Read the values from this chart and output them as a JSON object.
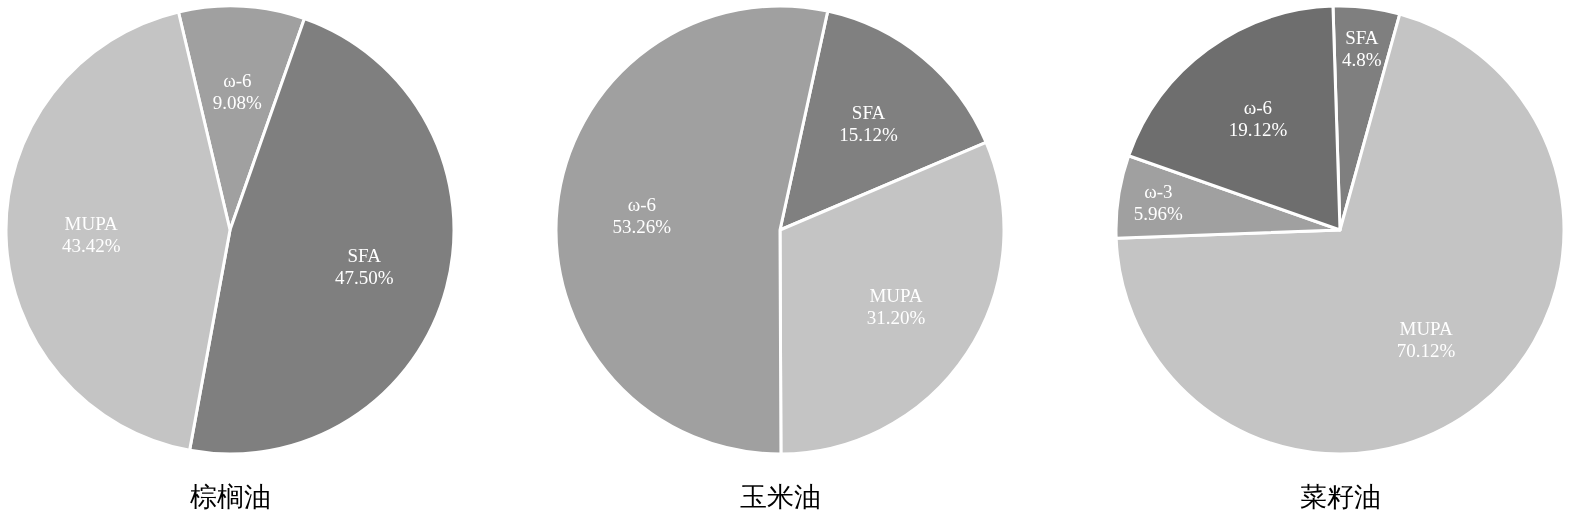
{
  "chart_data": [
    {
      "type": "pie",
      "title": "棕榈油",
      "categories": [
        "ω-6",
        "SFA",
        "MUPA"
      ],
      "values": [
        9.08,
        47.5,
        43.42
      ],
      "colors": [
        "#a0a0a0",
        "#7f7f7f",
        "#c4c4c4"
      ],
      "value_labels": [
        "9.08%",
        "47.50%",
        "43.42%"
      ]
    },
    {
      "type": "pie",
      "title": "玉米油",
      "categories": [
        "SFA",
        "MUPA",
        "ω-6"
      ],
      "values": [
        15.12,
        31.2,
        53.26
      ],
      "colors": [
        "#808080",
        "#c4c4c4",
        "#a0a0a0"
      ],
      "value_labels": [
        "15.12%",
        "31.20%",
        "53.26%"
      ]
    },
    {
      "type": "pie",
      "title": "菜籽油",
      "categories": [
        "SFA",
        "MUPA",
        "ω-3",
        "ω-6"
      ],
      "values": [
        4.8,
        70.12,
        5.96,
        19.12
      ],
      "colors": [
        "#7f7f7f",
        "#c4c4c4",
        "#a0a0a0",
        "#6e6e6e"
      ],
      "value_labels": [
        "4.8%",
        "70.12%",
        "5.96%",
        "19.12%"
      ]
    }
  ]
}
